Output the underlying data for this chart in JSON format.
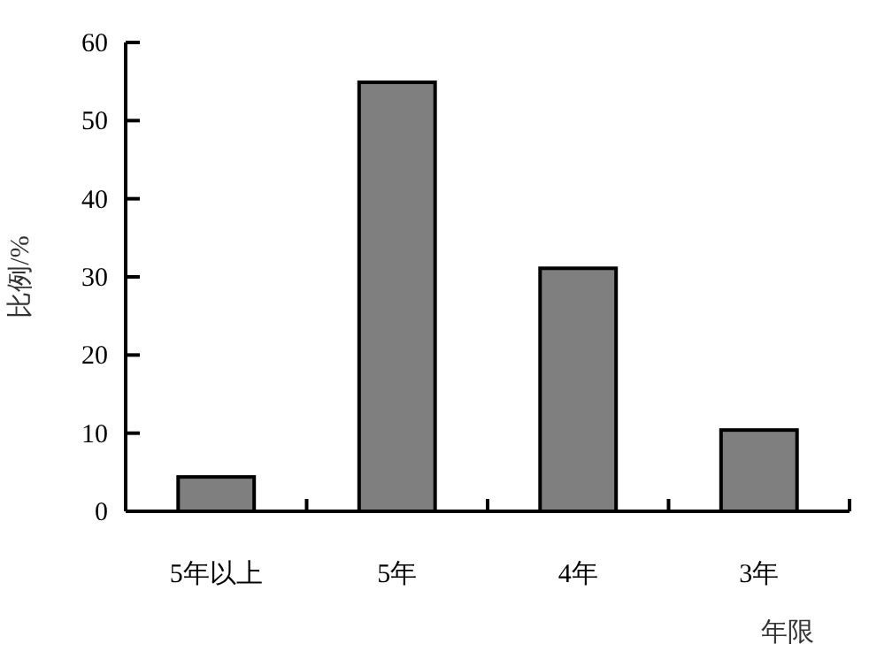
{
  "chart_data": {
    "type": "bar",
    "categories": [
      "5年以上",
      "5年",
      "4年",
      "3年"
    ],
    "values": [
      4.4,
      54.9,
      31.1,
      10.4
    ],
    "color": "#7f7f7f",
    "xlabel": "年限",
    "ylabel": "比例/%",
    "ylim": [
      0,
      60
    ],
    "yticks": [
      0,
      10,
      20,
      30,
      40,
      50,
      60
    ],
    "grid": false
  }
}
